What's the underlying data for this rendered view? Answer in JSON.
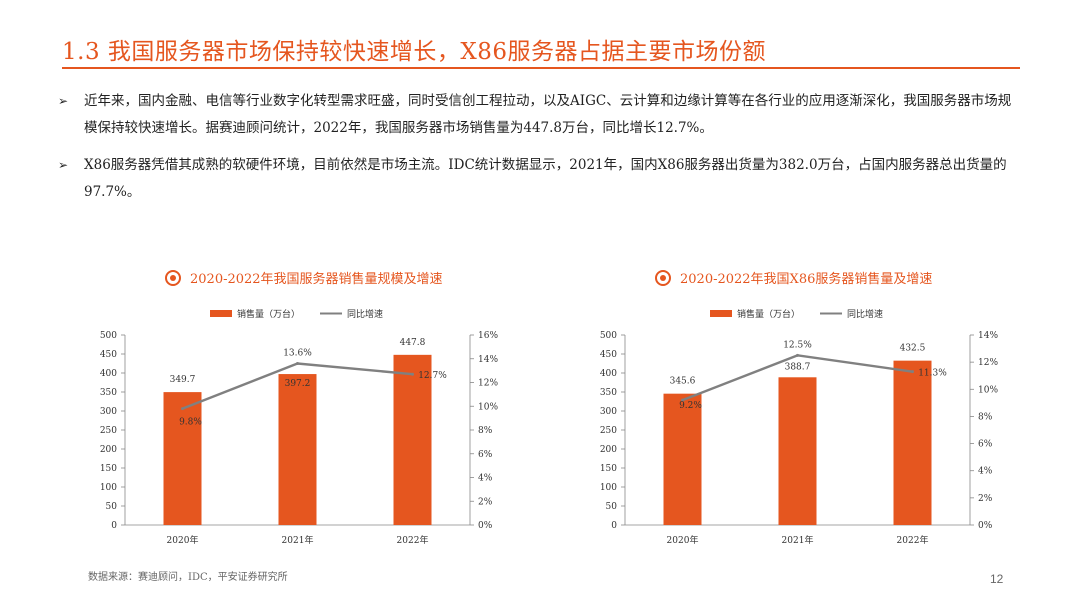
{
  "title": "1.3 我国服务器市场保持较快速增长，X86服务器占据主要市场份额",
  "bullets": [
    {
      "marker": "➢",
      "text": "近年来，国内金融、电信等行业数字化转型需求旺盛，同时受信创工程拉动，以及AIGC、云计算和边缘计算等在各行业的应用逐渐深化，我国服务器市场规模保持较快速增长。据赛迪顾问统计，2022年，我国服务器市场销售量为447.8万台，同比增长12.7%。"
    },
    {
      "marker": "➢",
      "text": "X86服务器凭借其成熟的软硬件环境，目前依然是市场主流。IDC统计数据显示，2021年，国内X86服务器出货量为382.0万台，占国内服务器总出货量的97.7%。"
    }
  ],
  "chart_data": [
    {
      "type": "bar",
      "title": "2020-2022年我国服务器销售量规模及增速",
      "categories": [
        "2020年",
        "2021年",
        "2022年"
      ],
      "series": [
        {
          "name": "销售量（万台）",
          "type": "bar",
          "axis": "left",
          "values": [
            349.7,
            397.2,
            447.8
          ],
          "labels": [
            "349.7",
            "397.2",
            "447.8"
          ],
          "color": "#e5561f"
        },
        {
          "name": "同比增速",
          "type": "line",
          "axis": "right",
          "values": [
            9.8,
            13.6,
            12.7
          ],
          "labels": [
            "9.8%",
            "13.6%",
            "12.7%"
          ],
          "color": "#808080"
        }
      ],
      "y_left": {
        "min": 0,
        "max": 500,
        "ticks": [
          0,
          50,
          100,
          150,
          200,
          250,
          300,
          350,
          400,
          450,
          500
        ]
      },
      "y_right": {
        "min": 0,
        "max": 16,
        "ticks": [
          0,
          2,
          4,
          6,
          8,
          10,
          12,
          14,
          16
        ],
        "tick_labels": [
          "0%",
          "2%",
          "4%",
          "6%",
          "8%",
          "10%",
          "12%",
          "14%",
          "16%"
        ]
      },
      "legend_position": "top"
    },
    {
      "type": "bar",
      "title": "2020-2022年我国X86服务器销售量及增速",
      "categories": [
        "2020年",
        "2021年",
        "2022年"
      ],
      "series": [
        {
          "name": "销售量（万台）",
          "type": "bar",
          "axis": "left",
          "values": [
            345.6,
            388.7,
            432.5
          ],
          "labels": [
            "345.6",
            "388.7",
            "432.5"
          ],
          "color": "#e5561f"
        },
        {
          "name": "同比增速",
          "type": "line",
          "axis": "right",
          "values": [
            9.2,
            12.5,
            11.3
          ],
          "labels": [
            "9.2%",
            "12.5%",
            "11.3%"
          ],
          "color": "#808080"
        }
      ],
      "y_left": {
        "min": 0,
        "max": 500,
        "ticks": [
          0,
          50,
          100,
          150,
          200,
          250,
          300,
          350,
          400,
          450,
          500
        ]
      },
      "y_right": {
        "min": 0,
        "max": 14,
        "ticks": [
          0,
          2,
          4,
          6,
          8,
          10,
          12,
          14
        ],
        "tick_labels": [
          "0%",
          "2%",
          "4%",
          "6%",
          "8%",
          "10%",
          "12%",
          "14%"
        ]
      },
      "legend_position": "top"
    }
  ],
  "source": "数据来源：赛迪顾问，IDC，平安证券研究所",
  "page_number": "12"
}
